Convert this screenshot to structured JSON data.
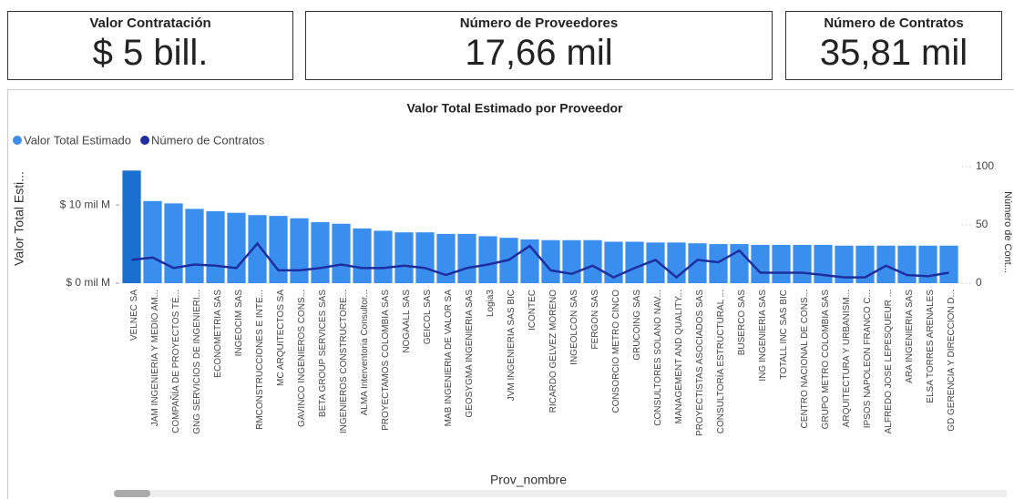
{
  "cards": [
    {
      "title": "Valor Contratación",
      "value": "$ 5 bill."
    },
    {
      "title": "Número de Proveedores",
      "value": "17,66 mil"
    },
    {
      "title": "Número de Contratos",
      "value": "35,81 mil"
    }
  ],
  "chart_data": {
    "type": "combo",
    "title": "Valor Total Estimado por Proveedor",
    "x_label": "Prov_nombre",
    "y_label": "Valor Total Esti...",
    "y2_label": "Número de Cont...",
    "categories": [
      "VELNEC SA",
      "JAM INGENIERIA Y MEDIO AM...",
      "COMPAÑÍA DE PROYECTOS TÉ...",
      "GNG SERVICIOS DE INGENIERI...",
      "ECONOMETRIA SAS",
      "INGEOCIM SAS",
      "RMCONSTRUCCIONES E INTE...",
      "MC ARQUITECTOS SA",
      "GAVINCO INGENIEROS CONS...",
      "BETA GROUP SERVICES SAS",
      "INGENIEROS CONSTRUCTORE...",
      "ALMA Interventoria Consultor...",
      "PROYECTAMOS COLOMBIA SAS",
      "NOGAALL SAS",
      "GEICOL SAS",
      "MAB INGENIERIA DE VALOR SA",
      "GEOSYGMA INGENIERIA SAS",
      "Logia3",
      "JVM INGENIERIA SAS BIC",
      "ICONTEC",
      "RICARDO GELVEZ MORENO",
      "INGEOLCON SAS",
      "FERGON SAS",
      "CONSORCIO METRO CINCO",
      "GRUCOING SAS",
      "CONSULTORES SOLANO NAV...",
      "MANAGEMENT AND QUALITY...",
      "PROYECTISTAS ASOCIADOS SAS",
      "CONSULTORÍA ESTRUCTURAL ...",
      "BUSERCO SAS",
      "ING INGENIERIA SAS",
      "TOTALL INC SAS BIC",
      "CENTRO NACIONAL DE CONS...",
      "GRUPO METRO COLOMBIA SAS",
      "ARQUITECTURA Y URBANISM...",
      "IPSOS NAPOLEON FRANCO C...",
      "ALFREDO JOSE LEPESQUEUR ...",
      "ARA INGENIERIA SAS",
      "ELSA TORRES ARENALES",
      "GD GERENCIA Y DIRECCION D..."
    ],
    "series": [
      {
        "name": "Valor Total Estimado",
        "type": "bar",
        "color": "#3a8fee",
        "highlight_color": "#1b6fcf",
        "highlight": [
          0
        ],
        "values": [
          14.4,
          10.5,
          10.2,
          9.5,
          9.2,
          9.0,
          8.7,
          8.6,
          8.3,
          7.8,
          7.6,
          7.0,
          6.7,
          6.5,
          6.5,
          6.3,
          6.3,
          6.0,
          5.8,
          5.6,
          5.5,
          5.5,
          5.5,
          5.3,
          5.3,
          5.2,
          5.2,
          5.1,
          5.0,
          5.0,
          4.9,
          4.9,
          4.9,
          4.9,
          4.8,
          4.8,
          4.8,
          4.8,
          4.8,
          4.8
        ]
      },
      {
        "name": "Número de Contratos",
        "type": "line",
        "axis": "y2",
        "color": "#1f2e9e",
        "values": [
          20,
          22,
          13,
          16,
          15,
          13,
          34,
          11,
          11,
          13,
          16,
          13,
          13,
          15,
          13,
          7,
          13,
          16,
          20,
          32,
          11,
          8,
          15,
          5,
          13,
          20,
          5,
          20,
          18,
          28,
          9,
          9,
          9,
          7,
          5,
          5,
          15,
          7,
          6,
          9
        ]
      }
    ],
    "ylim": [
      0,
      14.9
    ],
    "yticks": [
      {
        "value": 0,
        "label": "$ 0 mil M"
      },
      {
        "value": 10,
        "label": "$ 10 mil M"
      }
    ],
    "y2lim": [
      0,
      100
    ],
    "y2ticks": [
      0,
      50,
      100
    ],
    "legend": "top-left"
  }
}
